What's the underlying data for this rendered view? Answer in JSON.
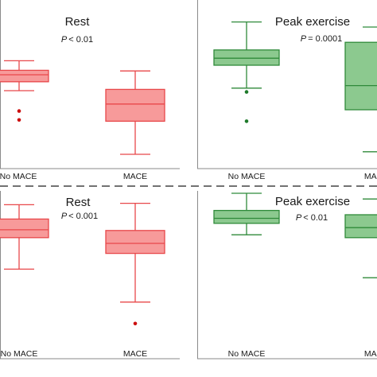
{
  "chart_data": [
    {
      "type": "box",
      "title": "Rest",
      "p_label": "P",
      "p_value": "< 0.01",
      "categories": [
        "No MACE",
        "MACE"
      ],
      "color": "#e8484a",
      "fill": "#f79a9a",
      "boxes": [
        {
          "whisker_low": 0.6,
          "q1": 0.67,
          "median": 0.725,
          "q3": 0.76,
          "whisker_high": 0.835,
          "outliers": [
            0.44,
            0.37
          ]
        },
        {
          "whisker_low": 0.1,
          "q1": 0.36,
          "median": 0.495,
          "q3": 0.61,
          "whisker_high": 0.755,
          "outliers": []
        }
      ]
    },
    {
      "type": "box",
      "title": "Peak exercise",
      "p_label": "P",
      "p_value": "= 0.0001",
      "categories": [
        "No MACE",
        "MACE"
      ],
      "color": "#2f8a3a",
      "fill": "#8cc98f",
      "boxes": [
        {
          "whisker_low": 0.62,
          "q1": 0.8,
          "median": 0.855,
          "q3": 0.92,
          "whisker_high": 1.14,
          "outliers": [
            0.59,
            0.36
          ]
        },
        {
          "whisker_low": 0.12,
          "q1": 0.45,
          "median": 0.64,
          "q3": 0.98,
          "whisker_high": 1.1,
          "outliers": []
        }
      ]
    },
    {
      "type": "box",
      "title": "Rest",
      "p_label": "P",
      "p_value": "< 0.001",
      "categories": [
        "No MACE",
        "MACE"
      ],
      "color": "#e8484a",
      "fill": "#f79a9a",
      "boxes": [
        {
          "whisker_low": 0.62,
          "q1": 0.84,
          "median": 0.895,
          "q3": 0.97,
          "whisker_high": 1.07,
          "outliers": []
        },
        {
          "whisker_low": 0.39,
          "q1": 0.73,
          "median": 0.8,
          "q3": 0.89,
          "whisker_high": 1.08,
          "outliers": [
            0.24
          ]
        }
      ]
    },
    {
      "type": "box",
      "title": "Peak exercise",
      "p_label": "P",
      "p_value": "< 0.01",
      "categories": [
        "No MACE",
        "MACE"
      ],
      "color": "#2f8a3a",
      "fill": "#8cc98f",
      "boxes": [
        {
          "whisker_low": 0.86,
          "q1": 0.94,
          "median": 0.975,
          "q3": 1.03,
          "whisker_high": 1.15,
          "outliers": []
        },
        {
          "whisker_low": 0.56,
          "q1": 0.84,
          "median": 0.91,
          "q3": 1.0,
          "whisker_high": 1.11,
          "outliers": []
        }
      ]
    }
  ]
}
